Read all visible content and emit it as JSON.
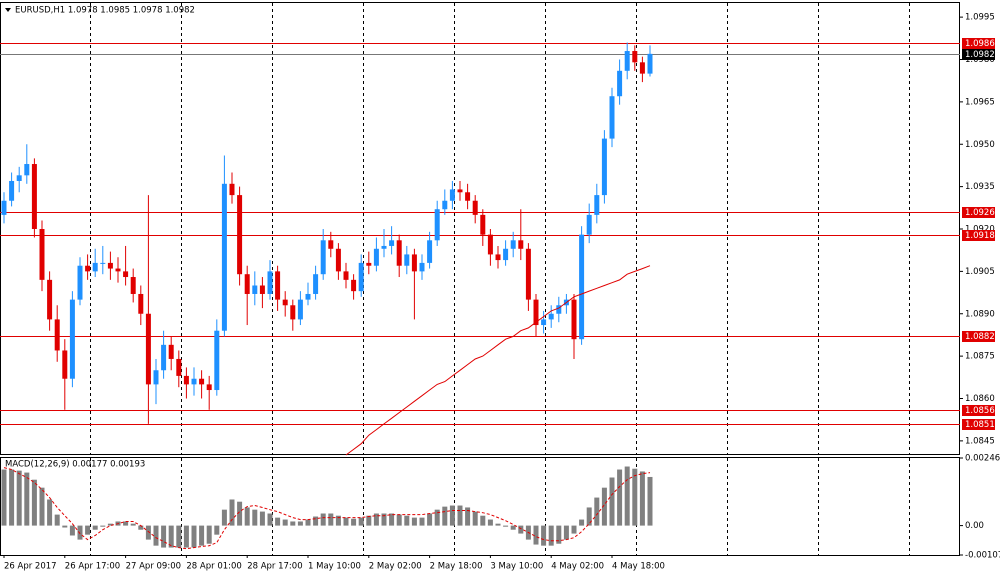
{
  "chart_data": {
    "type": "candlestick",
    "title": "EURUSD,H1  1.0978 1.0985 1.0978 1.0982",
    "up_color": "#1e90ff",
    "down_color": "#e00000",
    "ylim": [
      1.084,
      1.1
    ],
    "yticks": [
      1.0995,
      {
        "value": 1.098,
        "label": "1.0980"
      },
      1.0965,
      {
        "value": 1.095,
        "label": "1.0950"
      },
      1.0935,
      {
        "value": 1.092,
        "label": "1.0920"
      },
      1.0905,
      {
        "value": 1.089,
        "label": "1.0890"
      },
      1.0875,
      {
        "value": 1.086,
        "label": "1.0860"
      },
      1.0845
    ],
    "levels": [
      1.0986,
      1.0926,
      1.0918,
      1.0882,
      1.0856,
      1.0851
    ],
    "level_color": "#e00000",
    "current_price": 1.0982,
    "categories": [
      "26 Apr 2017",
      null,
      null,
      null,
      null,
      null,
      null,
      null,
      "26 Apr 17:00",
      null,
      null,
      null,
      null,
      null,
      null,
      null,
      "27 Apr 09:00",
      null,
      null,
      null,
      null,
      null,
      null,
      null,
      "28 Apr 01:00",
      null,
      null,
      null,
      null,
      null,
      null,
      null,
      "28 Apr 17:00",
      null,
      null,
      null,
      null,
      null,
      null,
      null,
      "1 May 10:00",
      null,
      null,
      null,
      null,
      null,
      null,
      null,
      "2 May 02:00",
      null,
      null,
      null,
      null,
      null,
      null,
      null,
      "2 May 18:00",
      null,
      null,
      null,
      null,
      null,
      null,
      null,
      "3 May 10:00",
      null,
      null,
      null,
      null,
      null,
      null,
      null,
      "4 May 02:00",
      null,
      null,
      null,
      null,
      null,
      null,
      null,
      "4 May 18:00",
      null,
      null,
      null,
      null,
      null
    ],
    "candles": [
      [
        1.0925,
        1.0933,
        1.0922,
        1.093
      ],
      [
        1.093,
        1.094,
        1.0928,
        1.0937
      ],
      [
        1.0937,
        1.0942,
        1.0933,
        1.0939
      ],
      [
        1.0939,
        1.095,
        1.0936,
        1.0943
      ],
      [
        1.0943,
        1.0945,
        1.0917,
        1.092
      ],
      [
        1.092,
        1.0923,
        1.0898,
        1.0902
      ],
      [
        1.0902,
        1.0905,
        1.0884,
        1.0888
      ],
      [
        1.0888,
        1.0893,
        1.0873,
        1.0877
      ],
      [
        1.0877,
        1.0881,
        1.0856,
        1.0867
      ],
      [
        1.0867,
        1.0898,
        1.0864,
        1.0895
      ],
      [
        1.0895,
        1.091,
        1.0893,
        1.0907
      ],
      [
        1.0907,
        1.0911,
        1.0902,
        1.0905
      ],
      [
        1.0905,
        1.0913,
        1.0903,
        1.0908
      ],
      [
        1.0908,
        1.0914,
        1.0904,
        1.0908
      ],
      [
        1.0908,
        1.0912,
        1.0902,
        1.0906
      ],
      [
        1.0906,
        1.091,
        1.0901,
        1.0905
      ],
      [
        1.0905,
        1.0914,
        1.09,
        1.0903
      ],
      [
        1.0903,
        1.0906,
        1.0894,
        1.0897
      ],
      [
        1.0897,
        1.09,
        1.0886,
        1.089
      ],
      [
        1.089,
        1.0932,
        1.0851,
        1.0865
      ],
      [
        1.0865,
        1.0874,
        1.0858,
        1.087
      ],
      [
        1.087,
        1.0884,
        1.0867,
        1.0879
      ],
      [
        1.0879,
        1.0882,
        1.087,
        1.0874
      ],
      [
        1.0874,
        1.0877,
        1.0864,
        1.0868
      ],
      [
        1.0868,
        1.0871,
        1.086,
        1.0865
      ],
      [
        1.0865,
        1.0871,
        1.0861,
        1.0867
      ],
      [
        1.0867,
        1.087,
        1.086,
        1.0865
      ],
      [
        1.0865,
        1.0868,
        1.0856,
        1.0863
      ],
      [
        1.0863,
        1.0888,
        1.0861,
        1.0884
      ],
      [
        1.0884,
        1.0946,
        1.0882,
        1.0936
      ],
      [
        1.0936,
        1.094,
        1.0929,
        1.0932
      ],
      [
        1.0932,
        1.0935,
        1.09,
        1.0904
      ],
      [
        1.0904,
        1.0907,
        1.0886,
        1.0897
      ],
      [
        1.0897,
        1.0905,
        1.0893,
        1.09
      ],
      [
        1.09,
        1.0903,
        1.0892,
        1.0897
      ],
      [
        1.0897,
        1.0909,
        1.0895,
        1.0905
      ],
      [
        1.0905,
        1.0907,
        1.0891,
        1.0895
      ],
      [
        1.0895,
        1.0898,
        1.0889,
        1.0893
      ],
      [
        1.0893,
        1.0895,
        1.0884,
        1.0888
      ],
      [
        1.0888,
        1.0898,
        1.0886,
        1.0895
      ],
      [
        1.0895,
        1.0901,
        1.0893,
        1.0897
      ],
      [
        1.0897,
        1.0907,
        1.0895,
        1.0904
      ],
      [
        1.0904,
        1.092,
        1.0902,
        1.0916
      ],
      [
        1.0916,
        1.0919,
        1.091,
        1.0913
      ],
      [
        1.0913,
        1.0915,
        1.0902,
        1.0905
      ],
      [
        1.0905,
        1.0908,
        1.0899,
        1.0902
      ],
      [
        1.0902,
        1.0904,
        1.0895,
        1.0898
      ],
      [
        1.0898,
        1.0911,
        1.0896,
        1.0908
      ],
      [
        1.0908,
        1.0912,
        1.0904,
        1.0907
      ],
      [
        1.0907,
        1.0917,
        1.0905,
        1.0913
      ],
      [
        1.0913,
        1.092,
        1.091,
        1.0914
      ],
      [
        1.0914,
        1.0921,
        1.0911,
        1.0916
      ],
      [
        1.0916,
        1.0918,
        1.0903,
        1.0907
      ],
      [
        1.0907,
        1.0914,
        1.0904,
        1.0911
      ],
      [
        1.0911,
        1.0913,
        1.0888,
        1.0905
      ],
      [
        1.0905,
        1.0911,
        1.0902,
        1.0908
      ],
      [
        1.0908,
        1.0919,
        1.0906,
        1.0916
      ],
      [
        1.0916,
        1.093,
        1.0914,
        1.0927
      ],
      [
        1.0927,
        1.0934,
        1.0925,
        1.093
      ],
      [
        1.093,
        1.0937,
        1.0927,
        1.0934
      ],
      [
        1.0934,
        1.0937,
        1.093,
        1.0933
      ],
      [
        1.0933,
        1.0936,
        1.0927,
        1.093
      ],
      [
        1.093,
        1.0932,
        1.0922,
        1.0925
      ],
      [
        1.0925,
        1.0927,
        1.0914,
        1.0918
      ],
      [
        1.0918,
        1.092,
        1.0907,
        1.0911
      ],
      [
        1.0911,
        1.0914,
        1.0906,
        1.0909
      ],
      [
        1.0909,
        1.0916,
        1.0907,
        1.0913
      ],
      [
        1.0913,
        1.0919,
        1.091,
        1.0916
      ],
      [
        1.0916,
        1.0927,
        1.0909,
        1.0913
      ],
      [
        1.0913,
        1.0915,
        1.0891,
        1.0895
      ],
      [
        1.0895,
        1.0897,
        1.0882,
        1.0886
      ],
      [
        1.0886,
        1.0891,
        1.0883,
        1.0888
      ],
      [
        1.0888,
        1.0893,
        1.0885,
        1.089
      ],
      [
        1.089,
        1.0896,
        1.0887,
        1.0893
      ],
      [
        1.0893,
        1.0897,
        1.089,
        1.0895
      ],
      [
        1.0895,
        1.0897,
        1.0874,
        1.0881
      ],
      [
        1.0881,
        1.0921,
        1.0879,
        1.0918
      ],
      [
        1.0918,
        1.0929,
        1.0915,
        1.0925
      ],
      [
        1.0925,
        1.0936,
        1.0922,
        1.0932
      ],
      [
        1.0932,
        1.0955,
        1.0929,
        1.0952
      ],
      [
        1.0952,
        1.097,
        1.0949,
        1.0967
      ],
      [
        1.0967,
        1.098,
        1.0964,
        1.0976
      ],
      [
        1.0976,
        1.0986,
        1.0973,
        1.0983
      ],
      [
        1.0983,
        1.0985,
        1.0976,
        1.0979
      ],
      [
        1.0979,
        1.0981,
        1.0972,
        1.0975
      ],
      [
        1.0975,
        1.0985,
        1.0974,
        1.0982
      ]
    ],
    "ma": {
      "color": "#e00000",
      "values": [
        null,
        null,
        null,
        null,
        null,
        null,
        null,
        null,
        null,
        null,
        null,
        null,
        null,
        null,
        null,
        null,
        null,
        null,
        null,
        null,
        null,
        null,
        null,
        null,
        null,
        null,
        null,
        null,
        null,
        null,
        null,
        null,
        null,
        null,
        null,
        null,
        null,
        null,
        null,
        null,
        null,
        null,
        null,
        null,
        null,
        1.084,
        1.0842,
        1.0844,
        1.0847,
        1.0849,
        1.0851,
        1.0853,
        1.0855,
        1.0857,
        1.0859,
        1.0861,
        1.0863,
        1.0865,
        1.0866,
        1.0868,
        1.087,
        1.0872,
        1.0874,
        1.0875,
        1.0877,
        1.0879,
        1.0881,
        1.0882,
        1.0884,
        1.0885,
        1.0887,
        1.0889,
        1.0891,
        1.0892,
        1.0894,
        1.0896,
        1.0897,
        1.0898,
        1.0899,
        1.09,
        1.0901,
        1.0902,
        1.0904,
        1.0905,
        1.0906,
        1.0907
      ]
    },
    "macd": {
      "title": "MACD(12,26,9) 0.00177 0.00193",
      "ylim": [
        -0.00107,
        0.00246
      ],
      "yticks": [
        0.00246,
        {
          "value": 0,
          "label": "0.00"
        },
        -0.00107
      ],
      "hist_color": "#808080",
      "signal_color": "#e00000",
      "hist": [
        0.00204,
        0.00204,
        0.002,
        0.00193,
        0.00167,
        0.00138,
        0.00095,
        0.0004,
        -7e-05,
        -0.00036,
        -0.00051,
        -0.00033,
        -0.00015,
        -4e-05,
        7e-05,
        0.00015,
        0.00015,
        7e-05,
        -0.00015,
        -0.00051,
        -0.00073,
        -0.0008,
        -0.0008,
        -0.0008,
        -0.0008,
        -0.0008,
        -0.00073,
        -0.00066,
        -0.00033,
        0.00058,
        0.00095,
        0.00087,
        0.00066,
        0.00058,
        0.00051,
        0.00044,
        0.00029,
        0.00022,
        0.00015,
        0.00015,
        0.00022,
        0.00033,
        0.00044,
        0.00044,
        0.00036,
        0.00029,
        0.00025,
        0.00029,
        0.00036,
        0.00044,
        0.00044,
        0.00044,
        0.0004,
        0.00036,
        0.00029,
        0.00029,
        0.00044,
        0.00058,
        0.00069,
        0.00073,
        0.00073,
        0.00066,
        0.00051,
        0.00036,
        0.00022,
        7e-05,
        -4e-05,
        -0.00015,
        -0.00029,
        -0.00051,
        -0.00069,
        -0.00073,
        -0.00073,
        -0.00066,
        -0.00051,
        -0.00029,
        0.00022,
        0.00066,
        0.00102,
        0.00138,
        0.00175,
        0.00204,
        0.00215,
        0.00207,
        0.00197,
        0.00177
      ],
      "signal": [
        0.00211,
        0.00204,
        0.00189,
        0.00175,
        0.00157,
        0.00131,
        0.00102,
        0.00066,
        0.00036,
        7e-05,
        -0.00029,
        -0.00051,
        -0.00036,
        -0.00015,
        0,
        7e-05,
        0.00015,
        0.00015,
        0,
        -0.00022,
        -0.00044,
        -0.00058,
        -0.00073,
        -0.0008,
        -0.00084,
        -0.0008,
        -0.00076,
        -0.00073,
        -0.00062,
        -0.00015,
        0.00022,
        0.00051,
        0.00069,
        0.00073,
        0.00066,
        0.00058,
        0.00051,
        0.0004,
        0.00029,
        0.00022,
        0.00022,
        0.00025,
        0.00029,
        0.00029,
        0.00029,
        0.00029,
        0.00029,
        0.00029,
        0.00033,
        0.00036,
        0.00036,
        0.0004,
        0.0004,
        0.0004,
        0.0004,
        0.0004,
        0.00044,
        0.00047,
        0.00051,
        0.00055,
        0.00055,
        0.00055,
        0.00051,
        0.00047,
        0.0004,
        0.00029,
        0.00018,
        4e-05,
        -0.00011,
        -0.00025,
        -0.0004,
        -0.00051,
        -0.00055,
        -0.00055,
        -0.00051,
        -0.00044,
        -0.00022,
        7e-05,
        0.0004,
        0.00076,
        0.00113,
        0.00142,
        0.00167,
        0.00182,
        0.00189,
        0.00193
      ]
    }
  }
}
